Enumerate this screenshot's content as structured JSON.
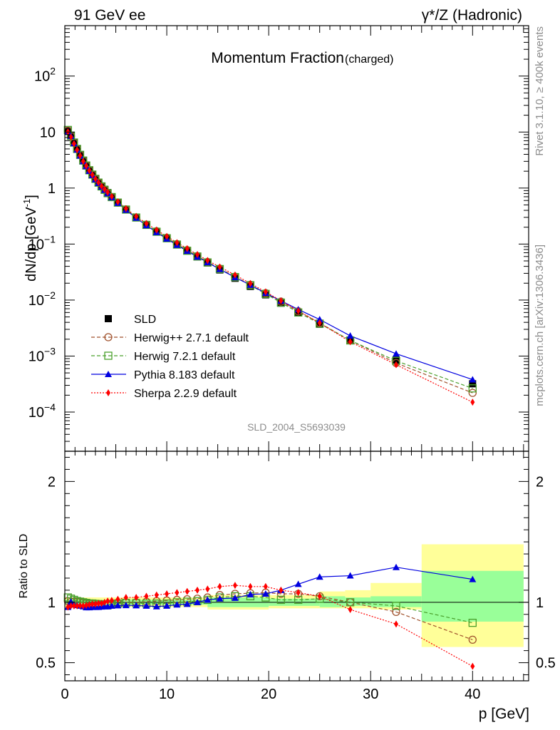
{
  "header": {
    "left_label": "91 GeV ee",
    "right_label": "γ*/Z (Hadronic)"
  },
  "side_labels": {
    "rivet": "Rivet 3.1.10, ≥ 400k events",
    "mcplots": "mcplots.cern.ch [arXiv:1306.3436]"
  },
  "watermark": "SLD_2004_S5693039",
  "chart_data": [
    {
      "type": "scatter",
      "title": "Momentum Fraction",
      "title_suffix": "(charged)",
      "ylabel": "dN/dp [GeV",
      "ylabel_sup": "-1",
      "ylabel_close": "]",
      "xlim": [
        0,
        45.5
      ],
      "ylog": true,
      "ylim_exp": [
        -4.7,
        2.9
      ],
      "ytick_labels": [
        {
          "exp": 2,
          "label": "10",
          "sup": "2"
        },
        {
          "exp": 1,
          "label": "10",
          "sup": ""
        },
        {
          "exp": 0,
          "label": "1",
          "sup": ""
        },
        {
          "exp": -1,
          "label": "10",
          "sup": "−1"
        },
        {
          "exp": -2,
          "label": "10",
          "sup": "−2"
        },
        {
          "exp": -3,
          "label": "10",
          "sup": "−3"
        },
        {
          "exp": -4,
          "label": "10",
          "sup": "−4"
        }
      ],
      "x": [
        0.3,
        0.6,
        0.9,
        1.2,
        1.5,
        1.8,
        2.1,
        2.4,
        2.7,
        3.0,
        3.3,
        3.6,
        3.9,
        4.2,
        4.6,
        5.2,
        6.0,
        7.0,
        8.0,
        9.0,
        10.0,
        11.0,
        12.0,
        13.0,
        14.0,
        15.2,
        16.7,
        18.2,
        19.7,
        21.2,
        22.9,
        25.0,
        28.0,
        32.5,
        40.0
      ],
      "series": [
        {
          "name": "SLD",
          "style": "data",
          "values": [
            10.5,
            8.4,
            6.4,
            4.95,
            3.9,
            3.1,
            2.55,
            2.1,
            1.76,
            1.48,
            1.27,
            1.09,
            0.95,
            0.83,
            0.7,
            0.555,
            0.415,
            0.3,
            0.222,
            0.168,
            0.128,
            0.098,
            0.076,
            0.059,
            0.046,
            0.0345,
            0.0245,
            0.0175,
            0.0124,
            0.0088,
            0.0059,
            0.0037,
            0.0019,
            0.00085,
            0.00032
          ]
        },
        {
          "name": "Herwig++ 2.7.1 default",
          "values": [
            10.6,
            8.45,
            6.43,
            4.97,
            3.91,
            3.09,
            2.53,
            2.08,
            1.74,
            1.46,
            1.25,
            1.07,
            0.93,
            0.81,
            0.69,
            0.55,
            0.415,
            0.3,
            0.223,
            0.17,
            0.13,
            0.1,
            0.078,
            0.061,
            0.048,
            0.0365,
            0.0262,
            0.0188,
            0.0133,
            0.0094,
            0.0063,
            0.0039,
            0.0019,
            0.00075,
            0.00022
          ]
        },
        {
          "name": "Herwig 7.2.1 default",
          "values": [
            10.9,
            8.6,
            6.5,
            5.0,
            3.92,
            3.1,
            2.53,
            2.08,
            1.74,
            1.46,
            1.25,
            1.07,
            0.93,
            0.81,
            0.69,
            0.55,
            0.413,
            0.298,
            0.22,
            0.166,
            0.127,
            0.098,
            0.076,
            0.06,
            0.047,
            0.0358,
            0.0257,
            0.0184,
            0.0129,
            0.009,
            0.006,
            0.0038,
            0.0019,
            0.00082,
            0.000265
          ]
        },
        {
          "name": "Pythia 8.183 default",
          "values": [
            10.1,
            8.45,
            6.28,
            4.83,
            3.78,
            2.99,
            2.44,
            2.01,
            1.69,
            1.42,
            1.22,
            1.05,
            0.92,
            0.8,
            0.68,
            0.54,
            0.405,
            0.292,
            0.215,
            0.162,
            0.124,
            0.096,
            0.075,
            0.059,
            0.047,
            0.0355,
            0.0254,
            0.0186,
            0.0133,
            0.0097,
            0.0068,
            0.0045,
            0.0023,
            0.0011,
            0.00038
          ]
        },
        {
          "name": "Sherpa 2.2.9 default",
          "values": [
            10.1,
            8.15,
            6.2,
            4.8,
            3.79,
            3.01,
            2.49,
            2.06,
            1.73,
            1.46,
            1.26,
            1.08,
            0.95,
            0.84,
            0.71,
            0.57,
            0.43,
            0.312,
            0.233,
            0.178,
            0.137,
            0.106,
            0.083,
            0.065,
            0.051,
            0.039,
            0.028,
            0.0198,
            0.014,
            0.0097,
            0.0064,
            0.0039,
            0.0018,
            0.0007,
            0.00015
          ]
        }
      ],
      "legend": [
        "SLD",
        "Herwig++ 2.7.1 default",
        "Herwig 7.2.1 default",
        "Pythia 8.183 default",
        "Sherpa 2.2.9 default"
      ],
      "legend_position": "bottom-left"
    },
    {
      "type": "scatter",
      "ylabel": "Ratio to SLD",
      "xlabel": "p [GeV]",
      "xlim": [
        0,
        45.5
      ],
      "ylim": [
        0.35,
        2.25
      ],
      "xtick_labels": [
        0,
        10,
        20,
        30,
        40
      ],
      "ytick_labels": [
        0.5,
        1,
        2
      ],
      "reference_line": 1,
      "uncertainty_bands": [
        {
          "x": [
            0,
            14
          ],
          "stat": [
            0.98,
            1.02
          ],
          "total": [
            0.96,
            1.04
          ]
        },
        {
          "x": [
            14,
            20
          ],
          "stat": [
            0.96,
            1.04
          ],
          "total": [
            0.94,
            1.06
          ]
        },
        {
          "x": [
            20,
            25
          ],
          "stat": [
            0.97,
            1.03
          ],
          "total": [
            0.95,
            1.06
          ]
        },
        {
          "x": [
            25,
            27.5
          ],
          "stat": [
            0.96,
            1.05
          ],
          "total": [
            0.95,
            1.09
          ]
        },
        {
          "x": [
            27.5,
            30
          ],
          "stat": [
            0.97,
            1.04
          ],
          "total": [
            0.95,
            1.1
          ]
        },
        {
          "x": [
            30,
            35
          ],
          "stat": [
            0.96,
            1.05
          ],
          "total": [
            0.94,
            1.16
          ]
        },
        {
          "x": [
            35,
            45
          ],
          "stat": [
            0.84,
            1.26
          ],
          "total": [
            0.63,
            1.48
          ]
        }
      ],
      "series": [
        {
          "name": "Herwig++ 2.7.1 default",
          "values": [
            1.01,
            1.005,
            1.005,
            1.004,
            1.003,
            0.997,
            0.992,
            0.99,
            0.99,
            0.988,
            0.985,
            0.98,
            0.98,
            0.975,
            0.985,
            0.99,
            1.0,
            1.0,
            1.005,
            1.01,
            1.015,
            1.02,
            1.025,
            1.03,
            1.04,
            1.06,
            1.07,
            1.075,
            1.08,
            1.07,
            1.07,
            1.05,
            1.0,
            0.92,
            0.69
          ]
        },
        {
          "name": "Herwig 7.2.1 default",
          "values": [
            1.04,
            1.03,
            1.02,
            1.01,
            1.005,
            1.0,
            0.995,
            0.99,
            0.99,
            0.987,
            0.985,
            0.983,
            0.98,
            0.975,
            0.985,
            0.99,
            0.995,
            0.993,
            0.99,
            0.99,
            0.99,
            1.0,
            1.005,
            1.01,
            1.02,
            1.04,
            1.05,
            1.05,
            1.04,
            1.02,
            1.02,
            1.03,
            1.0,
            0.97,
            0.83
          ]
        },
        {
          "name": "Pythia 8.183 default",
          "values": [
            0.96,
            1.005,
            0.98,
            0.975,
            0.97,
            0.965,
            0.957,
            0.957,
            0.96,
            0.96,
            0.96,
            0.963,
            0.965,
            0.965,
            0.97,
            0.973,
            0.975,
            0.973,
            0.97,
            0.965,
            0.97,
            0.98,
            0.985,
            1.0,
            1.02,
            1.03,
            1.035,
            1.065,
            1.07,
            1.1,
            1.15,
            1.21,
            1.22,
            1.29,
            1.19
          ]
        },
        {
          "name": "Sherpa 2.2.9 default",
          "values": [
            0.96,
            0.97,
            0.97,
            0.97,
            0.972,
            0.97,
            0.975,
            0.98,
            0.985,
            0.985,
            0.99,
            0.99,
            1.0,
            1.01,
            1.015,
            1.025,
            1.04,
            1.04,
            1.05,
            1.06,
            1.07,
            1.08,
            1.09,
            1.1,
            1.11,
            1.13,
            1.14,
            1.13,
            1.13,
            1.1,
            1.08,
            1.05,
            0.94,
            0.82,
            0.47
          ]
        }
      ]
    }
  ],
  "colors": {
    "SLD": "#000000",
    "Herwig++ 2.7.1 default": "#a0522d",
    "Herwig 7.2.1 default": "#4aa02c",
    "Pythia 8.183 default": "#0000e0",
    "Sherpa 2.2.9 default": "#ff0000",
    "band_total": "#ffff99",
    "band_stat": "#99ff99"
  }
}
